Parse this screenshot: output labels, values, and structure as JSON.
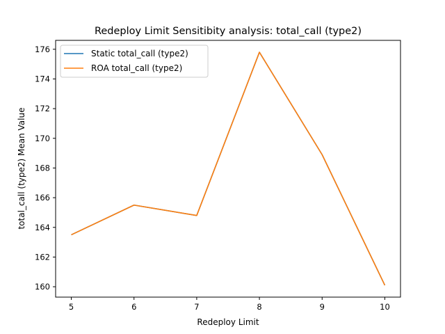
{
  "chart_data": {
    "type": "line",
    "title": "Redeploy Limit Sensitibity analysis: total_call (type2)",
    "xlabel": "Redeploy Limit",
    "ylabel": "total_call (type2) Mean Value",
    "x": [
      5,
      6,
      7,
      8,
      9,
      10
    ],
    "xlim": [
      4.75,
      10.25
    ],
    "ylim": [
      159.3,
      176.6
    ],
    "xticks": [
      5,
      6,
      7,
      8,
      9,
      10
    ],
    "yticks": [
      160,
      162,
      164,
      166,
      168,
      170,
      172,
      174,
      176
    ],
    "grid": false,
    "legend": "top-left",
    "series": [
      {
        "name": "Static total_call (type2)",
        "color": "#1f77b4",
        "values": [
          163.5,
          165.5,
          164.8,
          175.8,
          168.9,
          160.1
        ]
      },
      {
        "name": "ROA total_call (type2)",
        "color": "#ff7f0e",
        "values": [
          163.5,
          165.5,
          164.8,
          175.8,
          168.9,
          160.1
        ]
      }
    ]
  }
}
